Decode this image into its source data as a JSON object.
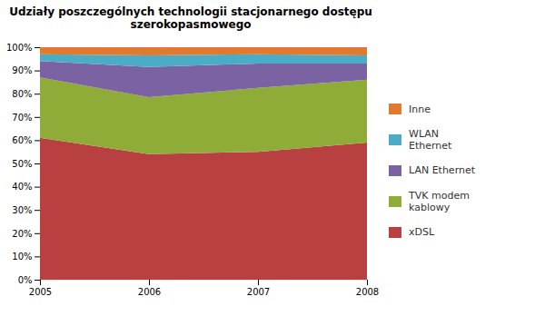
{
  "chart_data": {
    "type": "area",
    "stacked": true,
    "title": "Udziały poszczególnych technologii stacjonarnego dostępu\nszerokopasmowego",
    "x": [
      2005,
      2006,
      2007,
      2008
    ],
    "series": [
      {
        "name": "xDSL",
        "color": "#b94040",
        "values": [
          61.0,
          54.0,
          55.0,
          59.0
        ]
      },
      {
        "name": "TVK modem\nkablowy",
        "color": "#8fac38",
        "values": [
          26.0,
          24.5,
          27.5,
          27.0
        ]
      },
      {
        "name": "LAN Ethernet",
        "color": "#7b62a3",
        "values": [
          7.0,
          13.0,
          10.5,
          7.0
        ]
      },
      {
        "name": "WLAN\nEthernet",
        "color": "#4bacc6",
        "values": [
          3.0,
          5.0,
          4.0,
          3.5
        ]
      },
      {
        "name": "Inne",
        "color": "#e07a30",
        "values": [
          3.0,
          3.5,
          3.0,
          3.5
        ]
      }
    ],
    "xlim": [
      2005,
      2008
    ],
    "xticks": [
      2005,
      2006,
      2007,
      2008
    ],
    "ylim": [
      0,
      100
    ],
    "yticks": [
      {
        "value": 0,
        "label": "0%"
      },
      {
        "value": 10,
        "label": "10%"
      },
      {
        "value": 20,
        "label": "20%"
      },
      {
        "value": 30,
        "label": "30%"
      },
      {
        "value": 40,
        "label": "40%"
      },
      {
        "value": 50,
        "label": "50%"
      },
      {
        "value": 60,
        "label": "60%"
      },
      {
        "value": 70,
        "label": "70%"
      },
      {
        "value": 80,
        "label": "80%"
      },
      {
        "value": 90,
        "label": "90%"
      },
      {
        "value": 100,
        "label": "100%"
      }
    ],
    "grid": "y",
    "legend": "right"
  }
}
